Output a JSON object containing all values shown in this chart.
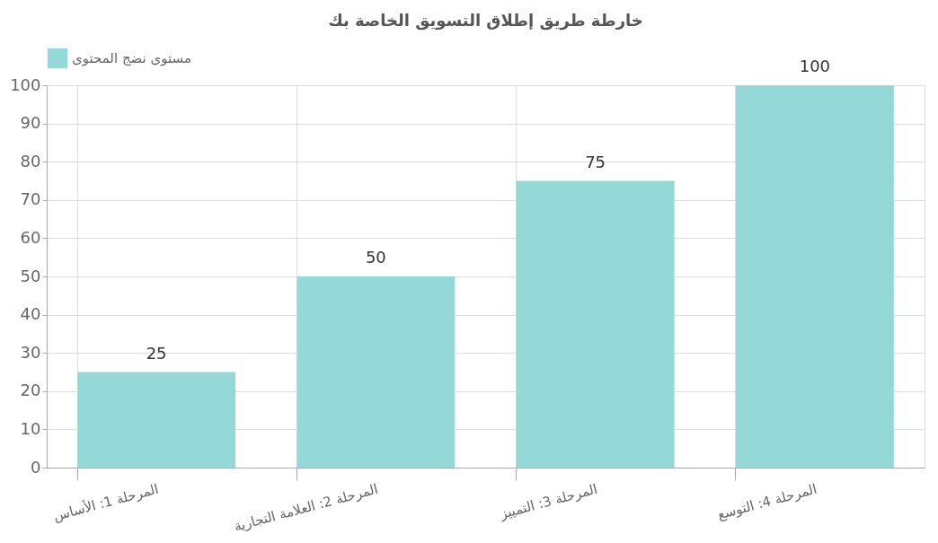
{
  "chart_data": {
    "type": "bar",
    "title": "خارطة طريق إطلاق التسويق الخاصة بك",
    "categories": [
      "المرحلة 1: الأساس",
      "المرحلة 2: العلامة التجارية",
      "المرحلة 3: التمييز",
      "المرحلة 4: التوسع"
    ],
    "series": [
      {
        "name": "مستوى نضج المحتوى",
        "color": "#94d9d7",
        "values": [
          25,
          50,
          75,
          100
        ]
      }
    ],
    "ylim": [
      0,
      100
    ],
    "yticks": [
      0,
      10,
      20,
      30,
      40,
      50,
      60,
      70,
      80,
      90,
      100
    ],
    "grid": true,
    "legend": "top",
    "data_labels": true
  }
}
